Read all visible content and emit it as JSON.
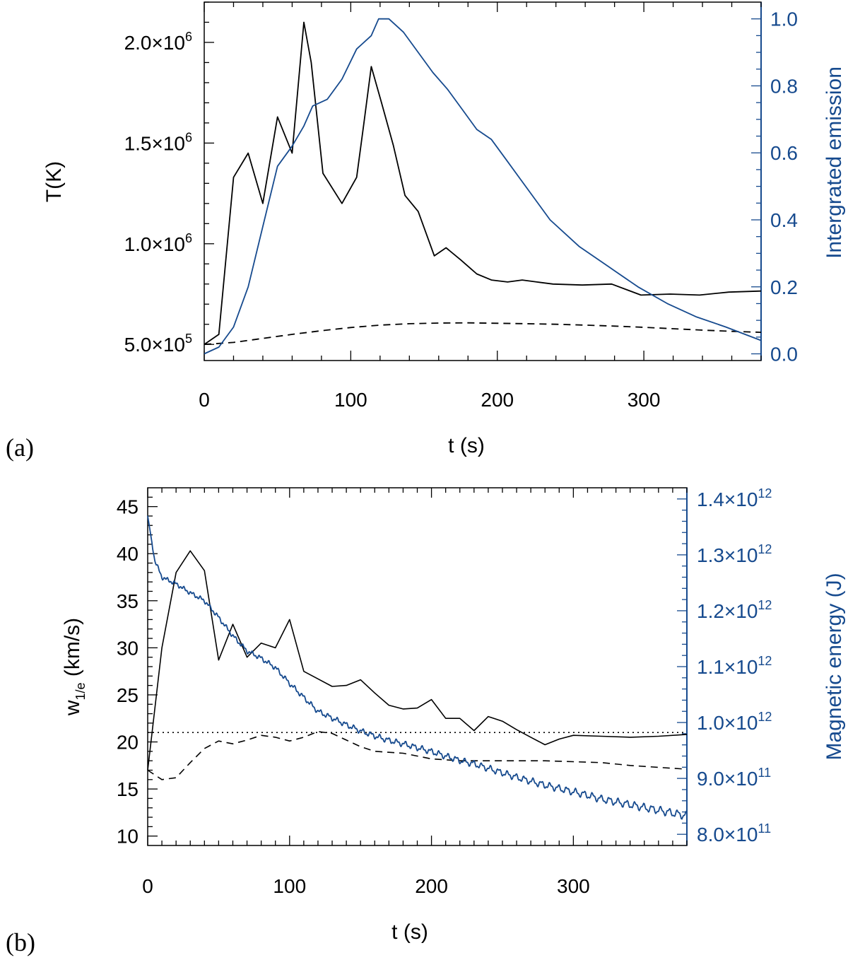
{
  "chart_data": [
    {
      "panel": "(a)",
      "type": "line",
      "xlabel": "t (s)",
      "ylabel": "T(K)",
      "ylabel_right": "Intergrated emission",
      "xlim": [
        0,
        380
      ],
      "ylim": [
        420000,
        2200000
      ],
      "ylim_right": [
        -0.02,
        1.05
      ],
      "x_ticks": [
        0,
        100,
        200,
        300
      ],
      "y_ticks": [
        {
          "value": 500000,
          "mantissa": "5.0×10",
          "exp": "5"
        },
        {
          "value": 1000000,
          "mantissa": "1.0×10",
          "exp": "6"
        },
        {
          "value": 1500000,
          "mantissa": "1.5×10",
          "exp": "6"
        },
        {
          "value": 2000000,
          "mantissa": "2.0×10",
          "exp": "6"
        }
      ],
      "y_right_ticks": [
        "0.0",
        "0.2",
        "0.4",
        "0.6",
        "0.8",
        "1.0"
      ],
      "colors": {
        "left": "#000000",
        "right": "#164a8e"
      },
      "series": [
        {
          "name": "temperature",
          "axis": "left",
          "style": "solid",
          "x": [
            0,
            10,
            20,
            30,
            40,
            50,
            60,
            68,
            73,
            81,
            94,
            104,
            109,
            114,
            121,
            129,
            137,
            146,
            157,
            165,
            175,
            186,
            196,
            207,
            217,
            227,
            238,
            258,
            278,
            298,
            318,
            338,
            358,
            380
          ],
          "values": [
            500000,
            550000,
            1330000,
            1450000,
            1200000,
            1630000,
            1450000,
            2100000,
            1900000,
            1350000,
            1200000,
            1330000,
            1600000,
            1880000,
            1700000,
            1490000,
            1240000,
            1160000,
            940000,
            980000,
            920000,
            850000,
            820000,
            810000,
            820000,
            810000,
            800000,
            795000,
            800000,
            745000,
            750000,
            745000,
            760000,
            765000
          ]
        },
        {
          "name": "temperature-reference",
          "axis": "left",
          "style": "dashed",
          "x": [
            0,
            20,
            40,
            60,
            80,
            100,
            120,
            140,
            160,
            180,
            200,
            220,
            240,
            260,
            280,
            300,
            320,
            340,
            360,
            380
          ],
          "values": [
            500000,
            510000,
            530000,
            550000,
            568000,
            584000,
            596000,
            603000,
            606000,
            607000,
            605000,
            603000,
            600000,
            596000,
            591000,
            585000,
            578000,
            571000,
            565000,
            560000
          ]
        },
        {
          "name": "integrated-emission",
          "axis": "right",
          "style": "solid",
          "x": [
            0,
            10,
            20,
            30,
            40,
            50,
            60,
            68,
            74,
            84,
            94,
            104,
            114,
            119,
            126,
            136,
            146,
            156,
            166,
            176,
            186,
            196,
            206,
            216,
            226,
            236,
            256,
            276,
            296,
            316,
            336,
            356,
            380
          ],
          "values": [
            0.0,
            0.02,
            0.08,
            0.2,
            0.38,
            0.56,
            0.62,
            0.68,
            0.74,
            0.76,
            0.82,
            0.91,
            0.95,
            1.0,
            1.0,
            0.96,
            0.9,
            0.84,
            0.79,
            0.73,
            0.67,
            0.64,
            0.58,
            0.52,
            0.46,
            0.4,
            0.32,
            0.26,
            0.2,
            0.15,
            0.11,
            0.08,
            0.04
          ]
        }
      ]
    },
    {
      "panel": "(b)",
      "type": "line",
      "xlabel": "t (s)",
      "ylabel_main": "w",
      "ylabel_sub": "1/e",
      "ylabel_unit": " (km/s)",
      "ylabel_right": "Magnetic energy (J)",
      "xlim": [
        0,
        380
      ],
      "ylim": [
        9,
        47
      ],
      "ylim_right": [
        780000000000,
        1420000000000
      ],
      "x_ticks": [
        0,
        100,
        200,
        300
      ],
      "y_ticks": [
        "10",
        "15",
        "20",
        "25",
        "30",
        "35",
        "40",
        "45"
      ],
      "y_right_ticks": [
        {
          "value": 800000000000,
          "mantissa": "8.0×10",
          "exp": "11"
        },
        {
          "value": 900000000000,
          "mantissa": "9.0×10",
          "exp": "11"
        },
        {
          "value": 1000000000000,
          "mantissa": "1.0×10",
          "exp": "12"
        },
        {
          "value": 1100000000000,
          "mantissa": "1.1×10",
          "exp": "12"
        },
        {
          "value": 1200000000000,
          "mantissa": "1.2×10",
          "exp": "12"
        },
        {
          "value": 1300000000000,
          "mantissa": "1.3×10",
          "exp": "12"
        },
        {
          "value": 1400000000000,
          "mantissa": "1.4×10",
          "exp": "12"
        }
      ],
      "colors": {
        "left": "#000000",
        "right": "#164a8e"
      },
      "series": [
        {
          "name": "line-width",
          "axis": "left",
          "style": "solid",
          "x": [
            0,
            10,
            20,
            30,
            40,
            50,
            60,
            70,
            80,
            90,
            100,
            110,
            120,
            130,
            140,
            150,
            160,
            170,
            180,
            190,
            200,
            210,
            220,
            230,
            240,
            250,
            260,
            270,
            280,
            290,
            300,
            320,
            340,
            360,
            380
          ],
          "values": [
            17,
            30,
            38,
            40.3,
            38.2,
            28.7,
            32.5,
            29,
            30.5,
            30,
            33,
            27.5,
            26.7,
            25.9,
            26,
            26.6,
            25.2,
            23.9,
            23.5,
            23.6,
            24.5,
            22.5,
            22.5,
            21.2,
            22.7,
            22.2,
            21.3,
            20.5,
            19.7,
            20.3,
            20.7,
            20.6,
            20.5,
            20.6,
            20.8
          ]
        },
        {
          "name": "line-width-reference",
          "axis": "left",
          "style": "dashed",
          "x": [
            0,
            10,
            20,
            30,
            40,
            50,
            60,
            70,
            80,
            90,
            100,
            110,
            120,
            130,
            140,
            150,
            160,
            170,
            180,
            190,
            200,
            220,
            240,
            260,
            280,
            300,
            320,
            340,
            360,
            380
          ],
          "values": [
            17,
            16,
            16.2,
            17.8,
            19.3,
            20.1,
            19.8,
            20.2,
            20.7,
            20.5,
            20.1,
            20.5,
            21.1,
            20.9,
            20.2,
            19.5,
            19,
            18.9,
            18.8,
            18.5,
            18.2,
            18,
            18,
            18,
            18,
            17.9,
            17.8,
            17.5,
            17.3,
            17.1
          ]
        },
        {
          "name": "reference-level",
          "axis": "left",
          "style": "dotted",
          "x": [
            0,
            380
          ],
          "values": [
            21,
            21
          ]
        },
        {
          "name": "magnetic-energy",
          "axis": "right",
          "style": "solid",
          "x": [
            0,
            5,
            10,
            20,
            30,
            40,
            50,
            60,
            70,
            80,
            90,
            100,
            110,
            120,
            130,
            140,
            150,
            160,
            170,
            180,
            190,
            200,
            210,
            220,
            230,
            240,
            250,
            260,
            270,
            280,
            290,
            300,
            310,
            320,
            330,
            340,
            350,
            360,
            370,
            380
          ],
          "values": [
            1370000000000,
            1290000000000,
            1260000000000,
            1248000000000,
            1232000000000,
            1218000000000,
            1188000000000,
            1155000000000,
            1128000000000,
            1115000000000,
            1098000000000,
            1070000000000,
            1045000000000,
            1020000000000,
            1008000000000,
            996000000000,
            985000000000,
            976000000000,
            968000000000,
            962000000000,
            955000000000,
            948000000000,
            940000000000,
            932000000000,
            926000000000,
            918000000000,
            910000000000,
            902000000000,
            895000000000,
            888000000000,
            882000000000,
            876000000000,
            870000000000,
            863000000000,
            858000000000,
            853000000000,
            848000000000,
            843000000000,
            838000000000,
            833000000000
          ],
          "oscillation_amplitude": 6000000000,
          "oscillation_period_s": 6
        }
      ]
    }
  ]
}
